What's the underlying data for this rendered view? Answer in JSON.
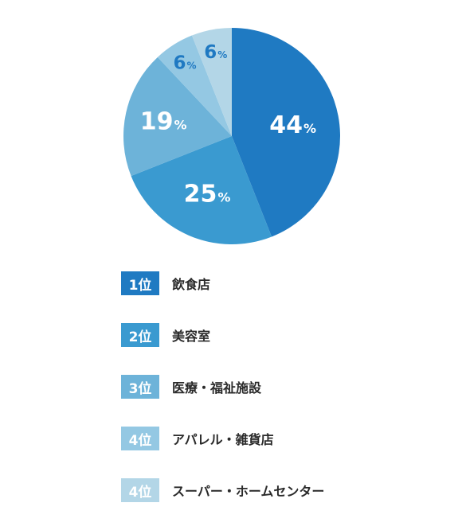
{
  "chart_data": {
    "type": "pie",
    "slices": [
      {
        "label": "44",
        "unit": "%",
        "value": 44,
        "color": "#1f7ac2"
      },
      {
        "label": "25",
        "unit": "%",
        "value": 25,
        "color": "#3a9ad0"
      },
      {
        "label": "19",
        "unit": "%",
        "value": 19,
        "color": "#6db3d9"
      },
      {
        "label": "6",
        "unit": "%",
        "value": 6,
        "color": "#94c8e3"
      },
      {
        "label": "6",
        "unit": "%",
        "value": 6,
        "color": "#b3d6e7"
      }
    ]
  },
  "ranking": [
    {
      "rank": "1位",
      "label": "飲食店",
      "color": "#1f7ac2"
    },
    {
      "rank": "2位",
      "label": "美容室",
      "color": "#3a9ad0"
    },
    {
      "rank": "3位",
      "label": "医療・福祉施設",
      "color": "#6db3d9"
    },
    {
      "rank": "4位",
      "label": "アパレル・雑貨店",
      "color": "#94c8e3"
    },
    {
      "rank": "4位",
      "label": "スーパー・ホームセンター",
      "color": "#b3d6e7"
    }
  ]
}
